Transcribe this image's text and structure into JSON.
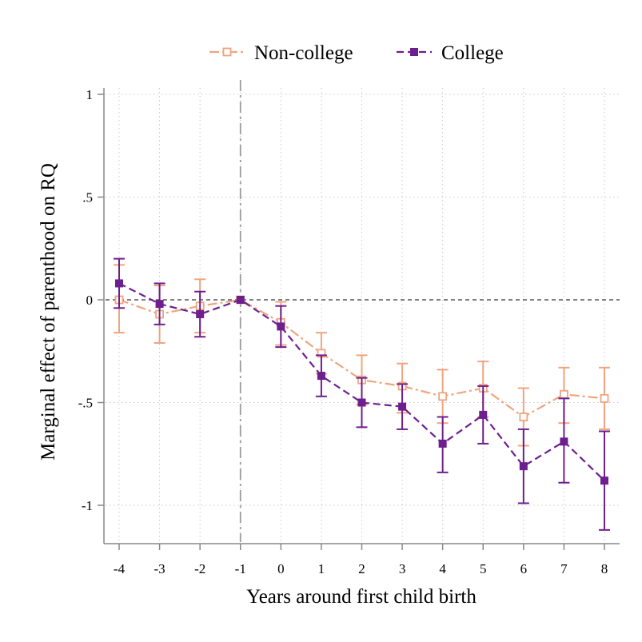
{
  "chart_data": {
    "type": "line",
    "title": "",
    "xlabel": "Years around first child birth",
    "ylabel": "Marginal effect of parenthood on RQ",
    "x": [
      -4,
      -3,
      -2,
      -1,
      0,
      1,
      2,
      3,
      4,
      5,
      6,
      7,
      8
    ],
    "x_tick_labels": [
      "-4",
      "-3",
      "-2",
      "-1",
      "0",
      "1",
      "2",
      "3",
      "4",
      "5",
      "6",
      "7",
      "8"
    ],
    "y_ticks": [
      1,
      0.5,
      0,
      -0.5,
      -1
    ],
    "y_tick_labels": [
      "1",
      ".5",
      "0",
      "-.5",
      "-1"
    ],
    "xlim": [
      -4,
      8
    ],
    "ylim": [
      -1.18,
      1.0
    ],
    "grid": true,
    "reference_line_x": -1,
    "reference_line_y": 0,
    "legend_position": "top",
    "series": [
      {
        "name": "Non-college",
        "color": "#F0A47E",
        "marker": "hollow-square",
        "line_style": "dash-dot",
        "values": [
          0.0,
          -0.07,
          -0.03,
          0.0,
          -0.11,
          -0.26,
          -0.39,
          -0.42,
          -0.47,
          -0.43,
          -0.57,
          -0.46,
          -0.48
        ],
        "ci_lower": [
          -0.16,
          -0.21,
          -0.16,
          0.0,
          -0.22,
          -0.36,
          -0.51,
          -0.55,
          -0.6,
          -0.57,
          -0.71,
          -0.6,
          -0.63
        ],
        "ci_upper": [
          0.17,
          0.07,
          0.1,
          0.0,
          -0.01,
          -0.16,
          -0.27,
          -0.31,
          -0.34,
          -0.3,
          -0.43,
          -0.33,
          -0.33
        ]
      },
      {
        "name": "College",
        "color": "#6E1F8E",
        "marker": "filled-square",
        "line_style": "dashed",
        "values": [
          0.08,
          -0.02,
          -0.07,
          0.0,
          -0.13,
          -0.37,
          -0.5,
          -0.52,
          -0.7,
          -0.56,
          -0.81,
          -0.69,
          -0.88
        ],
        "ci_lower": [
          -0.04,
          -0.12,
          -0.18,
          0.0,
          -0.23,
          -0.47,
          -0.62,
          -0.63,
          -0.84,
          -0.7,
          -0.99,
          -0.89,
          -1.12
        ],
        "ci_upper": [
          0.2,
          0.08,
          0.04,
          0.0,
          -0.03,
          -0.27,
          -0.38,
          -0.41,
          -0.57,
          -0.42,
          -0.63,
          -0.48,
          -0.64
        ]
      }
    ]
  }
}
